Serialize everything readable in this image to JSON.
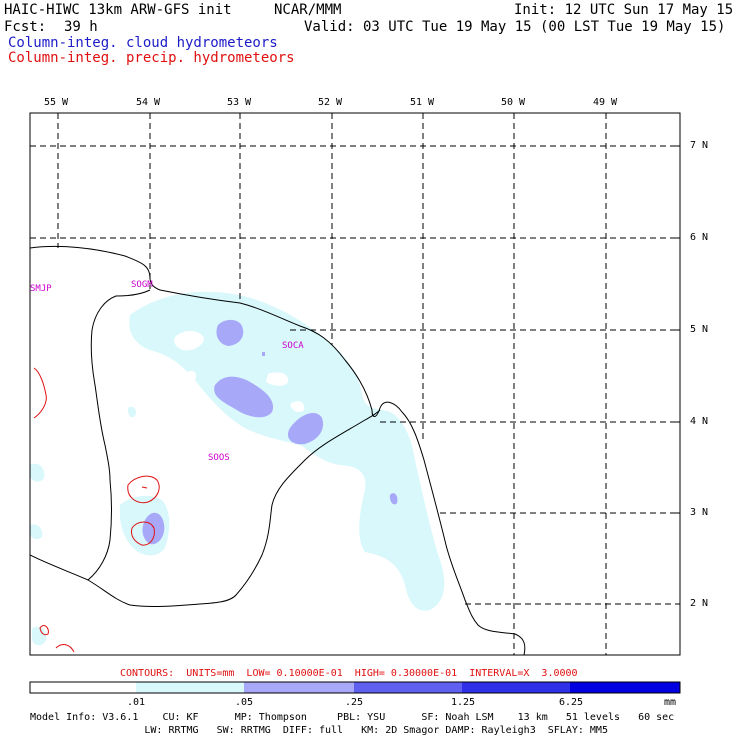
{
  "header": {
    "model_title": "HAIC-HIWC 13km ARW-GFS init",
    "org": "NCAR/MMM",
    "init_time": "Init: 12 UTC Sun 17 May 15",
    "fcst_label": "Fcst:",
    "fcst_hours": "39 h",
    "valid_time": "Valid: 03 UTC Tue 19 May 15 (00 LST Tue 19 May 15)",
    "field1": "Column-integ. cloud hydrometeors",
    "field2": "Column-integ. precip. hydrometeors"
  },
  "map": {
    "longitude_labels": [
      "55 W",
      "54 W",
      "53 W",
      "52 W",
      "51 W",
      "50 W",
      "49 W"
    ],
    "latitude_labels": [
      "7 N",
      "6 N",
      "5 N",
      "4 N",
      "3 N",
      "2 N"
    ],
    "stations": [
      "SMJP",
      "SOGM",
      "SOCA",
      "SOOS"
    ],
    "colors": {
      "light_cyan": "#d8f8fc",
      "lavender": "#a8a8f8",
      "contour": "#e01010",
      "grid": "#000000"
    }
  },
  "contours_line": "CONTOURS:  UNITS=mm  LOW= 0.10000E-01  HIGH= 0.30000E-01  INTERVAL=X  3.0000",
  "colorbar": {
    "labels": [
      ".01",
      ".05",
      ".25",
      "1.25",
      "6.25"
    ],
    "units": "mm",
    "colors": [
      "#ffffff",
      "#d8f8fc",
      "#a8a8f8",
      "#6060f0",
      "#3030e8",
      "#0000e0"
    ]
  },
  "model_info": {
    "line1": "Model Info: V3.6.1    CU: KF      MP: Thompson     PBL: YSU      SF: Noah LSM    13 km   51 levels   60 sec",
    "line2": "                   LW: RRTMG   SW: RRTMG  DIFF: full   KM: 2D Smagor DAMP: Rayleigh3  SFLAY: MM5"
  }
}
